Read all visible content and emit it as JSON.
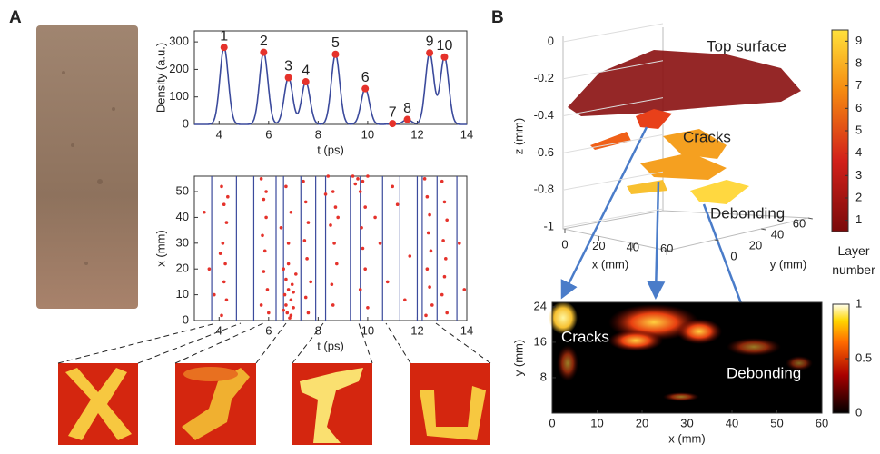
{
  "panel_labels": [
    "A",
    "B"
  ],
  "density_plot": {
    "ylabel": "Density (a.u.)",
    "xlabel": "t (ps)",
    "xlim": [
      3,
      14
    ],
    "ylim": [
      0,
      340
    ],
    "xticks": [
      4,
      6,
      8,
      10,
      12,
      14
    ],
    "yticks": [
      0,
      100,
      200,
      300
    ],
    "line_color": "#3b4a9c",
    "peak_color": "#e5322b",
    "peaks": [
      {
        "label": "1",
        "t": 4.2,
        "density": 280
      },
      {
        "label": "2",
        "t": 5.8,
        "density": 262
      },
      {
        "label": "3",
        "t": 6.8,
        "density": 170
      },
      {
        "label": "4",
        "t": 7.5,
        "density": 155
      },
      {
        "label": "5",
        "t": 8.7,
        "density": 255
      },
      {
        "label": "6",
        "t": 9.9,
        "density": 130
      },
      {
        "label": "7",
        "t": 11.0,
        "density": 3
      },
      {
        "label": "8",
        "t": 11.6,
        "density": 18
      },
      {
        "label": "9",
        "t": 12.5,
        "density": 260
      },
      {
        "label": "10",
        "t": 13.1,
        "density": 245
      }
    ]
  },
  "scatter_plot": {
    "ylabel": "x (mm)",
    "xlabel": "t (ps)",
    "xlim": [
      3,
      14
    ],
    "ylim": [
      0,
      56
    ],
    "xticks": [
      4,
      6,
      8,
      10,
      12,
      14
    ],
    "yticks": [
      0,
      10,
      20,
      30,
      40,
      50
    ],
    "point_color": "#e5322b",
    "boundary_color": "#3b4a9c",
    "boundaries": [
      3.7,
      4.7,
      5.4,
      6.3,
      6.6,
      7.3,
      7.9,
      8.3,
      9.3,
      9.7,
      10.6,
      11.3,
      12.0,
      12.2,
      12.8,
      13.6
    ],
    "points": [
      [
        4.1,
        52
      ],
      [
        4.2,
        45
      ],
      [
        4.3,
        38
      ],
      [
        4.15,
        30
      ],
      [
        4.25,
        22
      ],
      [
        4.2,
        15
      ],
      [
        4.3,
        8
      ],
      [
        4.1,
        2
      ],
      [
        4.35,
        48
      ],
      [
        4.05,
        26
      ],
      [
        5.7,
        55
      ],
      [
        5.8,
        47
      ],
      [
        5.9,
        40
      ],
      [
        5.75,
        33
      ],
      [
        5.85,
        27
      ],
      [
        5.8,
        19
      ],
      [
        5.95,
        12
      ],
      [
        5.7,
        6
      ],
      [
        6.0,
        3
      ],
      [
        5.9,
        50
      ],
      [
        6.6,
        20
      ],
      [
        6.7,
        16
      ],
      [
        6.8,
        12
      ],
      [
        6.9,
        8
      ],
      [
        7.0,
        5
      ],
      [
        6.75,
        3
      ],
      [
        6.85,
        1
      ],
      [
        6.95,
        14
      ],
      [
        6.65,
        10
      ],
      [
        7.1,
        18
      ],
      [
        6.8,
        22
      ],
      [
        6.7,
        6
      ],
      [
        7.0,
        11
      ],
      [
        6.9,
        2
      ],
      [
        6.6,
        4
      ],
      [
        6.8,
        30
      ],
      [
        6.9,
        42
      ],
      [
        6.7,
        52
      ],
      [
        6.5,
        36
      ],
      [
        7.4,
        54
      ],
      [
        7.5,
        46
      ],
      [
        7.6,
        38
      ],
      [
        7.45,
        31
      ],
      [
        7.55,
        24
      ],
      [
        7.7,
        15
      ],
      [
        7.5,
        9
      ],
      [
        7.6,
        3
      ],
      [
        8.4,
        56
      ],
      [
        8.6,
        50
      ],
      [
        8.7,
        44
      ],
      [
        8.5,
        37
      ],
      [
        8.65,
        30
      ],
      [
        8.75,
        22
      ],
      [
        8.55,
        14
      ],
      [
        8.6,
        6
      ],
      [
        8.3,
        49
      ],
      [
        8.8,
        40
      ],
      [
        9.4,
        56
      ],
      [
        9.6,
        55
      ],
      [
        9.8,
        54
      ],
      [
        10.0,
        56
      ],
      [
        9.7,
        50
      ],
      [
        9.9,
        44
      ],
      [
        9.75,
        36
      ],
      [
        9.8,
        28
      ],
      [
        9.9,
        20
      ],
      [
        9.7,
        12
      ],
      [
        10.0,
        5
      ],
      [
        9.5,
        53
      ],
      [
        10.5,
        30
      ],
      [
        10.8,
        15
      ],
      [
        11.2,
        45
      ],
      [
        11.5,
        8
      ],
      [
        11.7,
        25
      ],
      [
        11.0,
        52
      ],
      [
        10.3,
        40
      ],
      [
        12.3,
        55
      ],
      [
        12.4,
        48
      ],
      [
        12.5,
        41
      ],
      [
        12.45,
        34
      ],
      [
        12.55,
        27
      ],
      [
        12.4,
        20
      ],
      [
        12.5,
        13
      ],
      [
        12.6,
        6
      ],
      [
        12.35,
        2
      ],
      [
        13.0,
        54
      ],
      [
        13.1,
        46
      ],
      [
        13.2,
        39
      ],
      [
        13.05,
        31
      ],
      [
        13.15,
        24
      ],
      [
        13.1,
        17
      ],
      [
        13.0,
        10
      ],
      [
        13.2,
        3
      ],
      [
        3.4,
        42
      ],
      [
        3.6,
        20
      ],
      [
        3.8,
        10
      ],
      [
        13.7,
        30
      ],
      [
        13.9,
        12
      ]
    ]
  },
  "surface_plot": {
    "zlabel": "z (mm)",
    "xlabel": "x (mm)",
    "ylabel": "y (mm)",
    "zlim": [
      -1,
      0
    ],
    "zticks": [
      0,
      -0.2,
      -0.4,
      -0.6,
      -0.8,
      -1
    ],
    "xticks": [
      0,
      20,
      40,
      60
    ],
    "yticks": [
      0,
      20,
      40,
      60
    ],
    "annotations": [
      "Top surface",
      "Cracks",
      "Debonding"
    ],
    "colorbar": {
      "label": "Layer number",
      "lim": [
        0.5,
        9.5
      ],
      "ticks": [
        1,
        2,
        3,
        4,
        5,
        6,
        7,
        8,
        9
      ]
    }
  },
  "heatmap": {
    "xlabel": "x (mm)",
    "ylabel": "y (mm)",
    "xlim": [
      0,
      60
    ],
    "ylim": [
      0,
      25
    ],
    "xticks": [
      0,
      10,
      20,
      30,
      40,
      50,
      60
    ],
    "yticks": [
      8,
      16,
      24
    ],
    "annotations": [
      "Cracks",
      "Debonding"
    ],
    "colorbar": {
      "lim": [
        0,
        1
      ],
      "ticks": [
        0,
        0.5,
        1
      ]
    }
  }
}
